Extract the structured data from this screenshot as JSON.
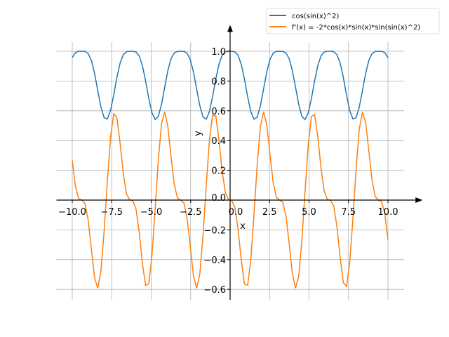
{
  "chart_data": {
    "type": "line",
    "title": "",
    "xlabel": "x",
    "ylabel": "y",
    "xlim": [
      -11,
      11.3
    ],
    "ylim": [
      -0.67,
      1.12
    ],
    "grid": true,
    "legend_position": "center",
    "x_sampling": {
      "start": -10,
      "stop": 10,
      "num": 100
    },
    "xticks": [
      -10,
      -7.5,
      -5,
      -2.5,
      0,
      2.5,
      5,
      7.5,
      10
    ],
    "xtick_labels": [
      "−10.0",
      "−7.5",
      "−5.0",
      "−2.5",
      "0.0",
      "2.5",
      "5.0",
      "7.5",
      "10.0"
    ],
    "yticks": [
      -0.6,
      -0.4,
      -0.2,
      0,
      0.2,
      0.4,
      0.6,
      0.8,
      1.0
    ],
    "ytick_labels": [
      "−0.6",
      "−0.4",
      "−0.2",
      "0.0",
      "0.2",
      "0.4",
      "0.6",
      "0.8",
      "1.0"
    ],
    "series": [
      {
        "name": "cos(sin(x)^2)",
        "expression": "cos(sin(x)^2)",
        "color": "#1f77b4"
      },
      {
        "name": "f'(x) = -2*cos(x)*sin(x)*sin(sin(x)^2)",
        "expression": "-2*cos(x)*sin(x)*sin(sin(x)^2)",
        "color": "#ff7f0e"
      }
    ]
  }
}
